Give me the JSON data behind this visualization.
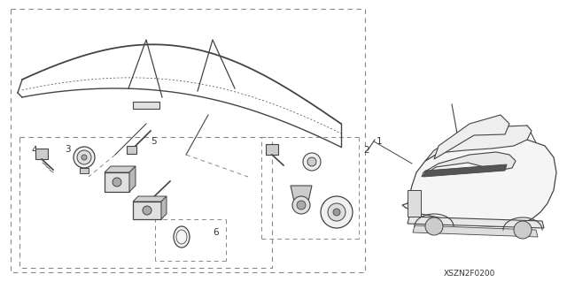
{
  "bg_color": "#ffffff",
  "line_color": "#444444",
  "dashed_color": "#888888",
  "text_color": "#333333",
  "fig_width": 6.4,
  "fig_height": 3.19,
  "diagram_code": "XSZN2F0200"
}
